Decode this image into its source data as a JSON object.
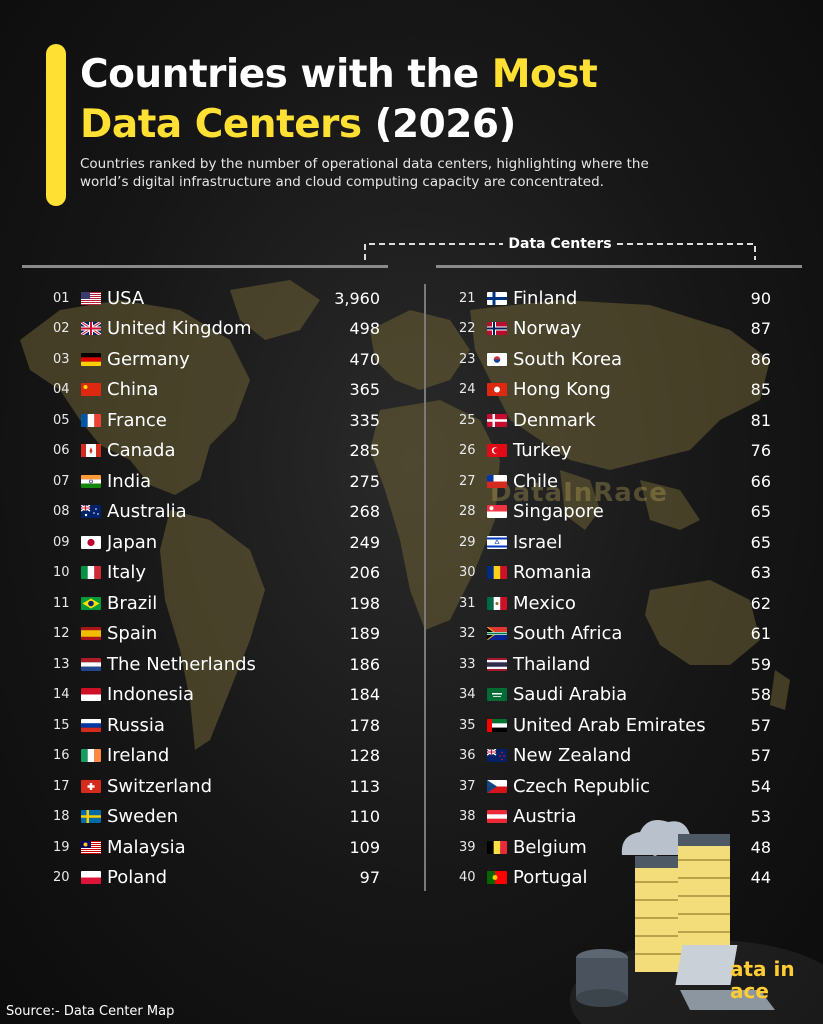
{
  "header": {
    "title_line1_plain": "Countries with the ",
    "title_line1_highlight": "Most",
    "title_line2_highlight": "Data Centers",
    "title_line2_plain": " (2026)",
    "subtitle_line1": "Countries ranked by the number of operational data centers, highlighting where the",
    "subtitle_line2": "world’s digital infrastructure and cloud computing capacity are concentrated."
  },
  "colors": {
    "accent": "#ffe033",
    "map": "#5a5230",
    "brand": "#ffcc33"
  },
  "watermark": "DataInRace",
  "brand_logo": "ata in ace",
  "source": "Source:- Data Center Map",
  "chart_data": {
    "type": "table",
    "title": "Countries with the Most Data Centers (2026)",
    "value_label": "Data Centers",
    "rows": [
      {
        "rank": "01",
        "country": "USA",
        "flag": "us",
        "value": "3,960"
      },
      {
        "rank": "02",
        "country": "United Kingdom",
        "flag": "gb",
        "value": "498"
      },
      {
        "rank": "03",
        "country": "Germany",
        "flag": "de",
        "value": "470"
      },
      {
        "rank": "04",
        "country": "China",
        "flag": "cn",
        "value": "365"
      },
      {
        "rank": "05",
        "country": "France",
        "flag": "fr",
        "value": "335"
      },
      {
        "rank": "06",
        "country": "Canada",
        "flag": "ca",
        "value": "285"
      },
      {
        "rank": "07",
        "country": "India",
        "flag": "in",
        "value": "275"
      },
      {
        "rank": "08",
        "country": "Australia",
        "flag": "au",
        "value": "268"
      },
      {
        "rank": "09",
        "country": "Japan",
        "flag": "jp",
        "value": "249"
      },
      {
        "rank": "10",
        "country": "Italy",
        "flag": "it",
        "value": "206"
      },
      {
        "rank": "11",
        "country": "Brazil",
        "flag": "br",
        "value": "198"
      },
      {
        "rank": "12",
        "country": "Spain",
        "flag": "es",
        "value": "189"
      },
      {
        "rank": "13",
        "country": "The Netherlands",
        "flag": "nl",
        "value": "186"
      },
      {
        "rank": "14",
        "country": "Indonesia",
        "flag": "id",
        "value": "184"
      },
      {
        "rank": "15",
        "country": "Russia",
        "flag": "ru",
        "value": "178"
      },
      {
        "rank": "16",
        "country": "Ireland",
        "flag": "ie",
        "value": "128"
      },
      {
        "rank": "17",
        "country": "Switzerland",
        "flag": "ch",
        "value": "113"
      },
      {
        "rank": "18",
        "country": "Sweden",
        "flag": "se",
        "value": "110"
      },
      {
        "rank": "19",
        "country": "Malaysia",
        "flag": "my",
        "value": "109"
      },
      {
        "rank": "20",
        "country": "Poland",
        "flag": "pl",
        "value": "97"
      },
      {
        "rank": "21",
        "country": "Finland",
        "flag": "fi",
        "value": "90"
      },
      {
        "rank": "22",
        "country": "Norway",
        "flag": "no",
        "value": "87"
      },
      {
        "rank": "23",
        "country": "South Korea",
        "flag": "kr",
        "value": "86"
      },
      {
        "rank": "24",
        "country": "Hong Kong",
        "flag": "hk",
        "value": "85"
      },
      {
        "rank": "25",
        "country": "Denmark",
        "flag": "dk",
        "value": "81"
      },
      {
        "rank": "26",
        "country": "Turkey",
        "flag": "tr",
        "value": "76"
      },
      {
        "rank": "27",
        "country": "Chile",
        "flag": "cl",
        "value": "66"
      },
      {
        "rank": "28",
        "country": "Singapore",
        "flag": "sg",
        "value": "65"
      },
      {
        "rank": "29",
        "country": "Israel",
        "flag": "il",
        "value": "65"
      },
      {
        "rank": "30",
        "country": "Romania",
        "flag": "ro",
        "value": "63"
      },
      {
        "rank": "31",
        "country": "Mexico",
        "flag": "mx",
        "value": "62"
      },
      {
        "rank": "32",
        "country": "South Africa",
        "flag": "za",
        "value": "61"
      },
      {
        "rank": "33",
        "country": "Thailand",
        "flag": "th",
        "value": "59"
      },
      {
        "rank": "34",
        "country": "Saudi Arabia",
        "flag": "sa",
        "value": "58"
      },
      {
        "rank": "35",
        "country": "United Arab Emirates",
        "flag": "ae",
        "value": "57"
      },
      {
        "rank": "36",
        "country": "New Zealand",
        "flag": "nz",
        "value": "57"
      },
      {
        "rank": "37",
        "country": "Czech Republic",
        "flag": "cz",
        "value": "54"
      },
      {
        "rank": "38",
        "country": "Austria",
        "flag": "at",
        "value": "53"
      },
      {
        "rank": "39",
        "country": "Belgium",
        "flag": "be",
        "value": "48"
      },
      {
        "rank": "40",
        "country": "Portugal",
        "flag": "pt",
        "value": "44"
      }
    ]
  }
}
